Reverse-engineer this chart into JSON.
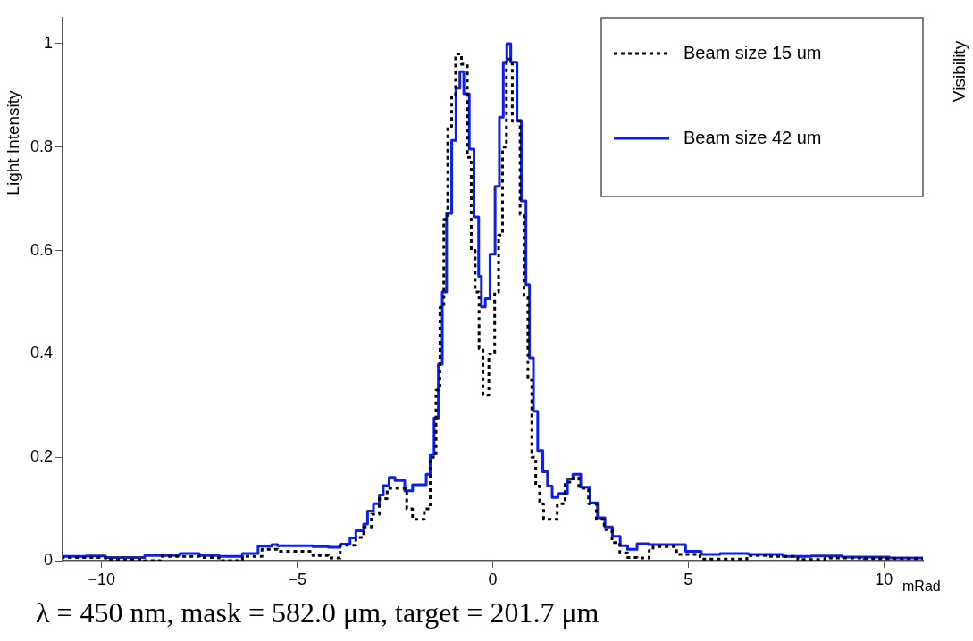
{
  "chart_data": {
    "type": "step",
    "xlabel": "mRad",
    "ylabel": "Light Intensity",
    "xlim": [
      -11,
      11
    ],
    "xticks": [
      {
        "value": -10,
        "label": "−10"
      },
      {
        "value": -5,
        "label": "−5"
      },
      0,
      5,
      10
    ],
    "ylim": [
      0,
      1.05
    ],
    "yticks": [
      0,
      0.2,
      0.4,
      0.6,
      0.8,
      1
    ],
    "grid": false,
    "legend": "top right",
    "series": [
      {
        "name": "Beam size 15 um",
        "color": "#000000",
        "line_style": "dotted",
        "x": [
          -11,
          -10.4,
          -9.9,
          -8.9,
          -8.5,
          -7.5,
          -7,
          -6.4,
          -5.9,
          -5.5,
          -4.6,
          -4.2,
          -3.9,
          -3.5,
          -3.3,
          -3.1,
          -2.9,
          -2.7,
          -2.5,
          -2.2,
          -2.05,
          -1.9,
          -1.75,
          -1.6,
          -1.45,
          -1.35,
          -1.25,
          -1.15,
          -1.05,
          -0.95,
          -0.8,
          -0.65,
          -0.55,
          -0.45,
          -0.35,
          -0.25,
          -0.1,
          0.05,
          0.15,
          0.25,
          0.35,
          0.5,
          0.7,
          0.8,
          0.9,
          1,
          1.1,
          1.2,
          1.3,
          1.45,
          1.65,
          1.85,
          2.05,
          2.2,
          2.45,
          2.65,
          2.85,
          3.05,
          3.25,
          3.45,
          3.7,
          4,
          4.1,
          4.7,
          5.3,
          5.8,
          6.5,
          7,
          7.8,
          8.5,
          9.5,
          10.5,
          11
        ],
        "values": [
          0.003,
          0.006,
          0.006,
          0.002,
          0,
          0.008,
          0.006,
          0,
          0.008,
          0.022,
          0.018,
          0.01,
          0.005,
          0.03,
          0.045,
          0.065,
          0.09,
          0.12,
          0.14,
          0.14,
          0.1,
          0.08,
          0.08,
          0.1,
          0.2,
          0.33,
          0.49,
          0.66,
          0.84,
          0.9,
          0.98,
          0.96,
          0.78,
          0.6,
          0.52,
          0.41,
          0.32,
          0.4,
          0.52,
          0.63,
          0.8,
          0.97,
          0.85,
          0.67,
          0.51,
          0.35,
          0.2,
          0.144,
          0.11,
          0.08,
          0.08,
          0.11,
          0.152,
          0.16,
          0.14,
          0.11,
          0.08,
          0.06,
          0.035,
          0.015,
          0.006,
          0.005,
          0.02,
          0.027,
          0.012,
          0.003,
          0.003,
          0.01,
          0.008,
          0.002,
          0.005,
          0.004,
          0.004
        ]
      },
      {
        "name": "Beam size 42 um",
        "color": "#0a1ef5",
        "line_style": "solid",
        "x": [
          -11,
          -10.4,
          -9.9,
          -8.9,
          -8,
          -7.5,
          -7,
          -6.4,
          -6,
          -5.65,
          -5.5,
          -4.6,
          -4.2,
          -3.9,
          -3.65,
          -3.5,
          -3.3,
          -3.2,
          -3.05,
          -2.9,
          -2.8,
          -2.65,
          -2.5,
          -2.25,
          -2.05,
          -1.7,
          -1.6,
          -1.5,
          -1.39,
          -1.29,
          -1.18,
          -1.05,
          -0.94,
          -0.84,
          -0.74,
          -0.6,
          -0.48,
          -0.36,
          -0.29,
          -0.19,
          -0.07,
          0.06,
          0.17,
          0.27,
          0.36,
          0.46,
          0.62,
          0.73,
          0.85,
          0.94,
          1.04,
          1.15,
          1.28,
          1.4,
          1.52,
          1.67,
          1.91,
          2.05,
          2.25,
          2.49,
          2.68,
          2.87,
          3.06,
          3.26,
          3.45,
          3.69,
          3.98,
          4.93,
          5.33,
          5.81,
          6.54,
          7.42,
          8.14,
          8.94,
          10.14,
          10.94,
          11
        ],
        "values": [
          0.003,
          0.008,
          0.009,
          0.006,
          0.01,
          0.014,
          0.01,
          0.008,
          0.014,
          0.028,
          0.031,
          0.029,
          0.027,
          0.026,
          0.032,
          0.044,
          0.058,
          0.071,
          0.096,
          0.11,
          0.127,
          0.145,
          0.161,
          0.155,
          0.135,
          0.147,
          0.167,
          0.205,
          0.276,
          0.38,
          0.52,
          0.672,
          0.813,
          0.914,
          0.946,
          0.903,
          0.796,
          0.665,
          0.55,
          0.491,
          0.507,
          0.593,
          0.724,
          0.858,
          0.964,
          1,
          0.964,
          0.852,
          0.696,
          0.534,
          0.392,
          0.289,
          0.213,
          0.172,
          0.144,
          0.122,
          0.13,
          0.158,
          0.167,
          0.142,
          0.112,
          0.083,
          0.065,
          0.047,
          0.029,
          0.022,
          0.033,
          0.031,
          0.018,
          0.012,
          0.014,
          0.012,
          0.008,
          0.009,
          0.007,
          0.005,
          0.005
        ]
      }
    ],
    "annotations": [
      "λ = 450 $_{}$nm, mask = 582.0 μm, target = 201.7 μm",
      "Visibility"
    ]
  }
}
